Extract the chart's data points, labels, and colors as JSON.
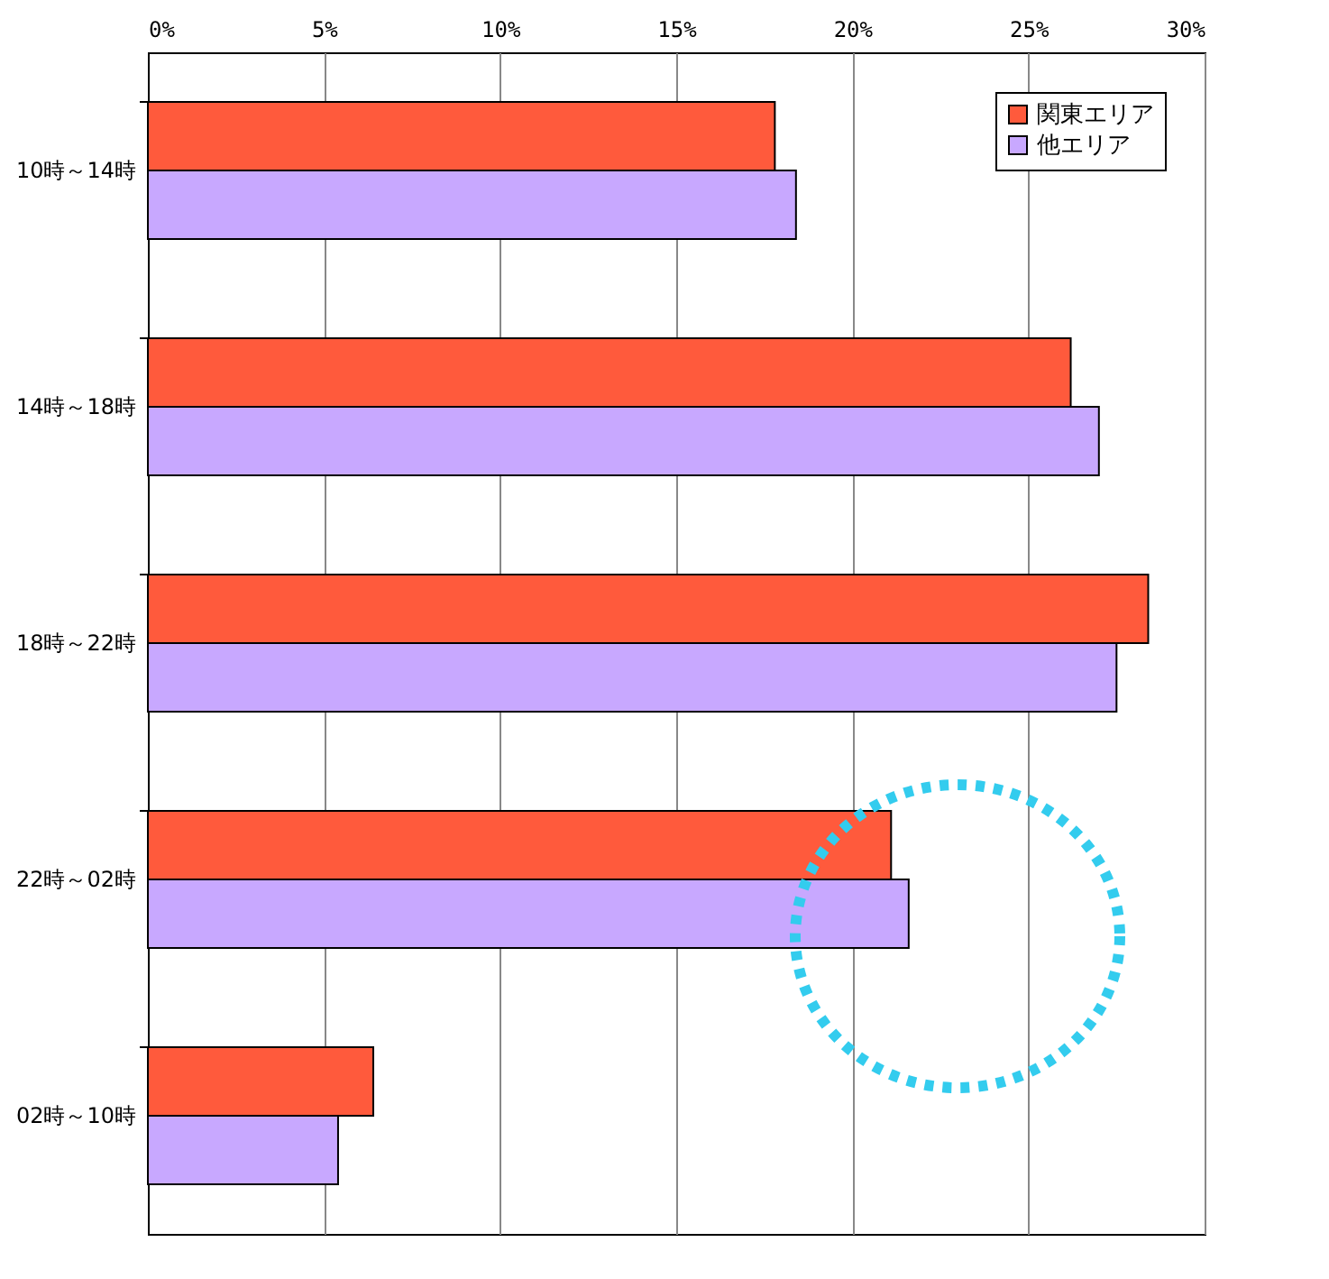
{
  "chart_data": {
    "type": "bar",
    "orientation": "horizontal",
    "categories": [
      "10時～14時",
      "14時～18時",
      "18時～22時",
      "22時～02時",
      "02時～10時"
    ],
    "series": [
      {
        "name": "関東エリア",
        "color": "#ff5a3c",
        "values": [
          17.8,
          26.2,
          28.4,
          21.1,
          6.4
        ]
      },
      {
        "name": "他エリア",
        "color": "#c8a8ff",
        "values": [
          18.4,
          27.0,
          27.5,
          21.6,
          5.4
        ]
      }
    ],
    "xlim": [
      0,
      30
    ],
    "xticks": [
      {
        "value": 0,
        "label": "0%"
      },
      {
        "value": 5,
        "label": "5%"
      },
      {
        "value": 10,
        "label": "10%"
      },
      {
        "value": 15,
        "label": "15%"
      },
      {
        "value": 20,
        "label": "20%"
      },
      {
        "value": 25,
        "label": "25%"
      },
      {
        "value": 30,
        "label": "30%"
      }
    ],
    "grid": "x",
    "legend": "top right"
  }
}
